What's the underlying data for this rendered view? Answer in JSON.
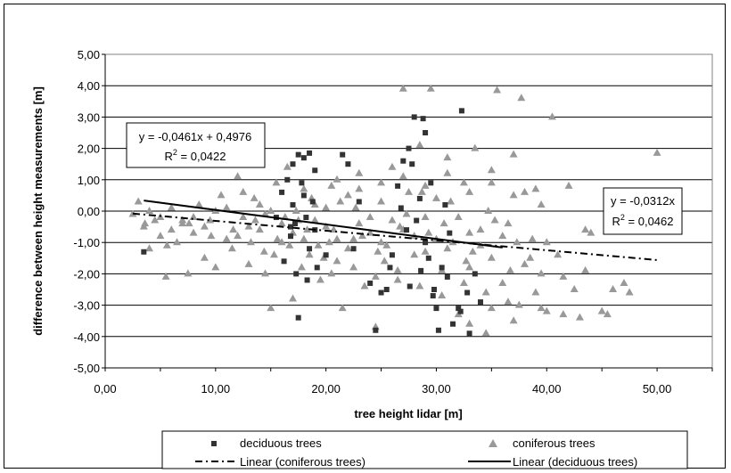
{
  "chart_data": {
    "type": "scatter",
    "xlabel": "tree height lidar [m]",
    "ylabel": "difference between height measurements [m]",
    "xlim": [
      0,
      55
    ],
    "ylim": [
      -5,
      5
    ],
    "x_ticks": [
      "0,00",
      "10,00",
      "20,00",
      "30,00",
      "40,00",
      "50,00"
    ],
    "y_ticks": [
      "5,00",
      "4,00",
      "3,00",
      "2,00",
      "1,00",
      "0,00",
      "-1,00",
      "-2,00",
      "-3,00",
      "-4,00",
      "-5,00"
    ],
    "grid": "horizontal",
    "legend_position": "bottom",
    "legend": [
      {
        "label": "deciduous trees",
        "marker": "square",
        "color": "#333333"
      },
      {
        "label": "coniferous trees",
        "marker": "triangle",
        "color": "#999999"
      },
      {
        "label": "Linear (coniferous trees)",
        "style": "dash-dot"
      },
      {
        "label": "Linear (deciduous trees)",
        "style": "solid"
      }
    ],
    "annotations": [
      {
        "line1": "y = -0,0461x + 0,4976",
        "line2_prefix": "R",
        "line2_sup": "2",
        "line2_suffix": " = 0,0422"
      },
      {
        "line1": "y = -0,0312x",
        "line2_prefix": "R",
        "line2_sup": "2",
        "line2_suffix": " = 0,0462"
      }
    ],
    "series": [
      {
        "name": "deciduous trees",
        "trend": {
          "slope": -0.0461,
          "intercept": 0.4976,
          "x_range": [
            3.5,
            36
          ]
        },
        "points": [
          [
            3.5,
            -1.3
          ],
          [
            15.5,
            -0.2
          ],
          [
            16,
            0.6
          ],
          [
            16.5,
            1.0
          ],
          [
            16.8,
            -0.8
          ],
          [
            17,
            1.5
          ],
          [
            17,
            0.2
          ],
          [
            17.2,
            -0.4
          ],
          [
            17.5,
            1.8
          ],
          [
            17.5,
            -3.4
          ],
          [
            17.8,
            0.9
          ],
          [
            18,
            1.7
          ],
          [
            18,
            0.5
          ],
          [
            18.2,
            -0.2
          ],
          [
            18.5,
            -1.2
          ],
          [
            18.5,
            1.85
          ],
          [
            18.8,
            0.3
          ],
          [
            19,
            -0.6
          ],
          [
            19,
            1.3
          ],
          [
            16.2,
            -1.6
          ],
          [
            17.3,
            -2.0
          ],
          [
            18.3,
            -2.2
          ],
          [
            19.2,
            -1.8
          ],
          [
            16.8,
            -0.5
          ],
          [
            20,
            -1.4
          ],
          [
            21.5,
            1.8
          ],
          [
            22,
            1.5
          ],
          [
            22.5,
            -1.2
          ],
          [
            23,
            0.3
          ],
          [
            24,
            -2.3
          ],
          [
            24.5,
            -3.8
          ],
          [
            25,
            -2.6
          ],
          [
            25.5,
            -2.5
          ],
          [
            26,
            -1.4
          ],
          [
            26.5,
            0.8
          ],
          [
            27,
            1.6
          ],
          [
            27.5,
            2.0
          ],
          [
            27.8,
            1.5
          ],
          [
            28,
            3.0
          ],
          [
            28.5,
            0.4
          ],
          [
            28.8,
            2.95
          ],
          [
            29,
            2.5
          ],
          [
            29,
            -1.0
          ],
          [
            29.3,
            -1.5
          ],
          [
            29.5,
            0.9
          ],
          [
            29.8,
            -2.5
          ],
          [
            30,
            -3.1
          ],
          [
            30.2,
            -3.8
          ],
          [
            30.5,
            -1.8
          ],
          [
            31,
            -2.1
          ],
          [
            31.5,
            -3.6
          ],
          [
            32,
            -3.1
          ],
          [
            32.2,
            -3.2
          ],
          [
            32.3,
            3.2
          ],
          [
            32.8,
            -2.6
          ],
          [
            33,
            -3.9
          ],
          [
            33.5,
            -2.0
          ],
          [
            34,
            -2.9
          ],
          [
            28.2,
            -0.3
          ],
          [
            27.3,
            -0.6
          ],
          [
            26.8,
            0.1
          ],
          [
            30.8,
            0.2
          ],
          [
            31.2,
            -0.7
          ],
          [
            29.7,
            -2.7
          ],
          [
            28.6,
            -1.9
          ],
          [
            27.6,
            -2.4
          ],
          [
            25.8,
            -1.8
          ]
        ]
      },
      {
        "name": "coniferous trees",
        "trend": {
          "slope": -0.0312,
          "intercept": 0,
          "x_range": [
            2.5,
            50
          ]
        },
        "points": [
          [
            2.5,
            -0.1
          ],
          [
            3,
            0.3
          ],
          [
            3.5,
            -0.5
          ],
          [
            4,
            -1.2
          ],
          [
            4.5,
            -0.3
          ],
          [
            5,
            -0.8
          ],
          [
            5.5,
            -2.1
          ],
          [
            6,
            0.1
          ],
          [
            6.5,
            -1.0
          ],
          [
            7,
            -0.4
          ],
          [
            7.5,
            -2.0
          ],
          [
            8,
            -0.7
          ],
          [
            8.5,
            0.2
          ],
          [
            9,
            -1.5
          ],
          [
            9.5,
            -0.3
          ],
          [
            10,
            -1.8
          ],
          [
            10.5,
            0.5
          ],
          [
            11,
            -0.9
          ],
          [
            11.5,
            -1.2
          ],
          [
            12,
            1.1
          ],
          [
            12.5,
            -0.2
          ],
          [
            13,
            -1.7
          ],
          [
            13.5,
            0.4
          ],
          [
            14,
            -0.6
          ],
          [
            14.5,
            -2.0
          ],
          [
            15,
            -3.1
          ],
          [
            15.5,
            0.9
          ],
          [
            16,
            -1.0
          ],
          [
            16.5,
            1.4
          ],
          [
            17,
            -2.8
          ],
          [
            17.5,
            -0.3
          ],
          [
            18,
            0.7
          ],
          [
            18.5,
            -1.4
          ],
          [
            19,
            0.2
          ],
          [
            19.5,
            -2.2
          ],
          [
            20,
            -0.5
          ],
          [
            20.5,
            0.8
          ],
          [
            21,
            -1.6
          ],
          [
            21.5,
            -3.1
          ],
          [
            22,
            0.5
          ],
          [
            22.5,
            -0.9
          ],
          [
            23,
            1.2
          ],
          [
            23.5,
            -2.4
          ],
          [
            24,
            -0.2
          ],
          [
            24.5,
            -3.7
          ],
          [
            25,
            0.3
          ],
          [
            25.5,
            -1.1
          ],
          [
            26,
            1.4
          ],
          [
            26.5,
            -1.9
          ],
          [
            27,
            3.9
          ],
          [
            27.5,
            0.6
          ],
          [
            28,
            -0.8
          ],
          [
            28.5,
            2.1
          ],
          [
            29,
            -1.3
          ],
          [
            29.5,
            3.9
          ],
          [
            30,
            0.4
          ],
          [
            30.5,
            -2.7
          ],
          [
            31,
            1.7
          ],
          [
            31.5,
            -1.0
          ],
          [
            32,
            -3.3
          ],
          [
            32.5,
            0.9
          ],
          [
            33,
            -1.8
          ],
          [
            33.5,
            2.0
          ],
          [
            34,
            -0.6
          ],
          [
            34.5,
            -3.9
          ],
          [
            35,
            1.3
          ],
          [
            35.5,
            3.85
          ],
          [
            36,
            -2.3
          ],
          [
            36.5,
            -0.4
          ],
          [
            37,
            1.8
          ],
          [
            37.5,
            -3.0
          ],
          [
            37.7,
            3.6
          ],
          [
            38,
            0.6
          ],
          [
            38.5,
            -1.5
          ],
          [
            39,
            -2.6
          ],
          [
            39.5,
            0.2
          ],
          [
            40,
            -3.2
          ],
          [
            40.5,
            3.0
          ],
          [
            41,
            -1.4
          ],
          [
            41.5,
            -3.3
          ],
          [
            42,
            0.8
          ],
          [
            42.5,
            -2.5
          ],
          [
            43,
            -3.4
          ],
          [
            43.5,
            -0.6
          ],
          [
            44,
            -0.7
          ],
          [
            45,
            -3.2
          ],
          [
            45.5,
            -3.3
          ],
          [
            46,
            -2.5
          ],
          [
            47,
            -2.3
          ],
          [
            47.5,
            -2.6
          ],
          [
            50,
            1.85
          ],
          [
            4,
            0.0
          ],
          [
            6,
            -0.6
          ],
          [
            8,
            -0.2
          ],
          [
            10,
            0.0
          ],
          [
            12,
            -0.8
          ],
          [
            14,
            0.2
          ],
          [
            16,
            -0.4
          ],
          [
            18,
            -0.9
          ],
          [
            20,
            0.1
          ],
          [
            22,
            -1.2
          ],
          [
            24,
            -0.7
          ],
          [
            26,
            -0.3
          ],
          [
            28,
            -1.4
          ],
          [
            30,
            -0.9
          ],
          [
            32,
            -0.2
          ],
          [
            34,
            -1.1
          ],
          [
            36,
            -0.8
          ],
          [
            38,
            -1.7
          ],
          [
            40,
            -1.0
          ],
          [
            11,
            0.1
          ],
          [
            13,
            -0.5
          ],
          [
            15,
            0.0
          ],
          [
            17,
            -0.7
          ],
          [
            19,
            -0.3
          ],
          [
            21,
            -0.9
          ],
          [
            23,
            -0.4
          ],
          [
            25,
            -1.0
          ],
          [
            27,
            -0.6
          ],
          [
            29,
            -0.2
          ],
          [
            31,
            -1.2
          ],
          [
            33,
            -0.7
          ],
          [
            35,
            -1.5
          ],
          [
            5,
            -0.2
          ],
          [
            7,
            -0.3
          ],
          [
            9,
            -0.5
          ],
          [
            13.2,
            -1.0
          ],
          [
            15.3,
            -1.4
          ],
          [
            17.3,
            0.0
          ],
          [
            19.3,
            -1.1
          ],
          [
            21.3,
            0.3
          ],
          [
            23.3,
            -0.8
          ],
          [
            25.3,
            -1.6
          ],
          [
            27.3,
            -0.1
          ],
          [
            29.3,
            -0.7
          ],
          [
            31.3,
            0.3
          ],
          [
            33.3,
            -1.3
          ],
          [
            35.3,
            -0.3
          ],
          [
            37.3,
            -1.0
          ],
          [
            12.5,
            0.6
          ],
          [
            14.5,
            -0.1
          ],
          [
            16.7,
            -1.1
          ],
          [
            18.7,
            0.4
          ],
          [
            20.7,
            -0.6
          ],
          [
            22.7,
            0.1
          ],
          [
            24.7,
            -1.3
          ],
          [
            26.7,
            -0.5
          ],
          [
            28.7,
            0.6
          ],
          [
            30.7,
            -0.4
          ],
          [
            32.7,
            -1.6
          ],
          [
            34.7,
            0.0
          ],
          [
            36.7,
            -1.9
          ],
          [
            38.7,
            -0.9
          ],
          [
            39.5,
            -2.0
          ],
          [
            41.5,
            -2.1
          ],
          [
            43.5,
            -1.9
          ],
          [
            20.5,
            -2.0
          ],
          [
            22.5,
            -1.8
          ],
          [
            24.5,
            -2.1
          ],
          [
            26.5,
            -2.2
          ],
          [
            28.5,
            -2.4
          ],
          [
            30.5,
            -1.9
          ],
          [
            32.5,
            -2.3
          ],
          [
            34.5,
            -2.6
          ],
          [
            36.5,
            -2.9
          ],
          [
            33,
            -3.6
          ],
          [
            35,
            -3.1
          ],
          [
            37,
            -3.5
          ],
          [
            39.5,
            -3.1
          ],
          [
            21,
            1.0
          ],
          [
            23,
            0.7
          ],
          [
            25,
            0.9
          ],
          [
            27,
            1.1
          ],
          [
            29,
            0.8
          ],
          [
            31,
            1.2
          ],
          [
            33,
            0.6
          ],
          [
            35,
            0.9
          ],
          [
            37,
            0.5
          ],
          [
            39,
            0.7
          ],
          [
            17.8,
            -1.8
          ],
          [
            19.8,
            -1.5
          ],
          [
            18.3,
            -0.6
          ],
          [
            20.3,
            -1.0
          ],
          [
            16.3,
            -0.2
          ],
          [
            15.6,
            -0.9
          ],
          [
            14.4,
            -1.3
          ],
          [
            13.6,
            -0.3
          ],
          [
            11.6,
            -0.6
          ],
          [
            9.6,
            -0.8
          ],
          [
            7.6,
            -0.4
          ],
          [
            5.6,
            -1.1
          ],
          [
            3.6,
            -0.4
          ]
        ]
      }
    ]
  }
}
